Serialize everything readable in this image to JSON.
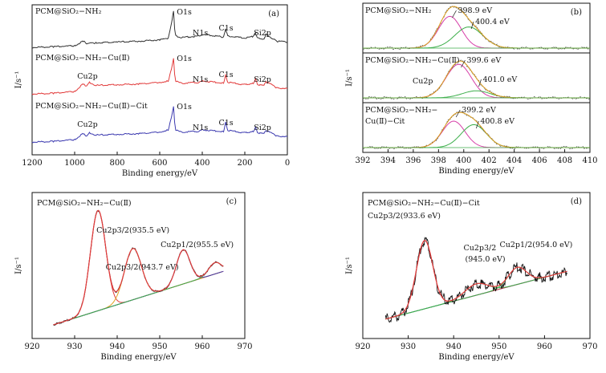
{
  "chart_data": [
    {
      "id": "a",
      "type": "line",
      "panel_label": "(a)",
      "xlabel": "Binding energy/eV",
      "ylabel": "I/s⁻¹",
      "xlim": [
        1200,
        0
      ],
      "xticks": [
        1200,
        1000,
        800,
        600,
        400,
        200,
        0
      ],
      "traces": [
        {
          "name": "PCM@SiO₂−NH₂",
          "color": "#333333",
          "x": [
            1200,
            1100,
            1000,
            960,
            950,
            940,
            900,
            800,
            700,
            600,
            560,
            545,
            535,
            530,
            525,
            500,
            420,
            400,
            300,
            290,
            280,
            200,
            160,
            150,
            140,
            110,
            100,
            50,
            0
          ],
          "y": [
            0.06,
            0.08,
            0.1,
            0.22,
            0.18,
            0.16,
            0.18,
            0.2,
            0.22,
            0.26,
            0.3,
            0.7,
            1.0,
            0.55,
            0.36,
            0.32,
            0.35,
            0.4,
            0.33,
            0.55,
            0.36,
            0.3,
            0.34,
            0.45,
            0.3,
            0.28,
            0.4,
            0.22,
            0.2
          ],
          "annotations": [
            {
              "text": "O1s",
              "x": 535
            },
            {
              "text": "N1s",
              "x": 400
            },
            {
              "text": "C1s",
              "x": 285
            },
            {
              "text": "Si2p",
              "x": 120
            }
          ]
        },
        {
          "name": "PCM@SiO₂−NH₂−Cu(Ⅱ)",
          "color": "#e23c3c",
          "x": [
            1200,
            1100,
            1000,
            960,
            950,
            940,
            930,
            900,
            800,
            700,
            600,
            560,
            545,
            535,
            530,
            525,
            500,
            420,
            400,
            300,
            290,
            280,
            200,
            160,
            150,
            140,
            110,
            100,
            50,
            0
          ],
          "y": [
            0.06,
            0.08,
            0.12,
            0.32,
            0.26,
            0.3,
            0.36,
            0.28,
            0.3,
            0.32,
            0.36,
            0.4,
            0.7,
            1.0,
            0.55,
            0.4,
            0.34,
            0.36,
            0.4,
            0.34,
            0.55,
            0.36,
            0.3,
            0.34,
            0.45,
            0.3,
            0.28,
            0.38,
            0.22,
            0.2
          ],
          "annotations": [
            {
              "text": "O1s",
              "x": 535
            },
            {
              "text": "Cu2p",
              "x": 935
            },
            {
              "text": "N1s",
              "x": 400
            },
            {
              "text": "C1s",
              "x": 285
            },
            {
              "text": "Si2p",
              "x": 120
            }
          ]
        },
        {
          "name": "PCM@SiO₂−NH₂−Cu(Ⅱ)−Cit",
          "color": "#3d3bb0",
          "x": [
            1200,
            1100,
            1000,
            960,
            950,
            940,
            930,
            900,
            800,
            700,
            600,
            560,
            545,
            535,
            530,
            525,
            500,
            420,
            400,
            300,
            290,
            280,
            200,
            160,
            150,
            140,
            110,
            100,
            50,
            0
          ],
          "y": [
            0.06,
            0.08,
            0.12,
            0.28,
            0.22,
            0.24,
            0.3,
            0.24,
            0.26,
            0.28,
            0.32,
            0.38,
            0.7,
            1.0,
            0.55,
            0.38,
            0.32,
            0.34,
            0.38,
            0.33,
            0.58,
            0.36,
            0.3,
            0.34,
            0.44,
            0.3,
            0.28,
            0.36,
            0.22,
            0.2
          ],
          "annotations": [
            {
              "text": "O1s",
              "x": 535
            },
            {
              "text": "Cu2p",
              "x": 935
            },
            {
              "text": "N1s",
              "x": 400
            },
            {
              "text": "C1s",
              "x": 285
            },
            {
              "text": "Si2p",
              "x": 120
            }
          ]
        }
      ]
    },
    {
      "id": "b",
      "type": "line",
      "panel_label": "(b)",
      "xlabel": "Binding energy/eV",
      "ylabel": "I/s⁻¹",
      "xlim": [
        392,
        410
      ],
      "xticks": [
        392,
        394,
        396,
        398,
        400,
        402,
        404,
        406,
        408,
        410
      ],
      "subpanels": [
        {
          "title": "PCM@SiO₂−NH₂",
          "components": [
            {
              "center": 398.9,
              "amp": 0.9,
              "sigma": 0.9,
              "color": "#d63fa8",
              "label": "398.9 eV"
            },
            {
              "center": 400.4,
              "amp": 0.6,
              "sigma": 1.1,
              "color": "#3cae4a",
              "label": "400.4 eV"
            }
          ],
          "data_color": "#555555",
          "sum_color": "#e0a020"
        },
        {
          "title": "PCM@SiO₂−NH₂−Cu(Ⅱ)",
          "extra_label": "Cu2p",
          "components": [
            {
              "center": 399.6,
              "amp": 0.95,
              "sigma": 1.0,
              "color": "#d63fa8",
              "label": "399.6 eV"
            },
            {
              "center": 401.0,
              "amp": 0.2,
              "sigma": 1.1,
              "color": "#3cae4a",
              "label": "401.0 eV"
            }
          ],
          "data_color": "#555555",
          "sum_color": "#e0a020"
        },
        {
          "title": "PCM@SiO₂−NH₂−",
          "title2": "Cu(Ⅱ)−Cit",
          "components": [
            {
              "center": 399.2,
              "amp": 0.75,
              "sigma": 0.9,
              "color": "#d63fa8",
              "label": "399.2 eV"
            },
            {
              "center": 400.8,
              "amp": 0.65,
              "sigma": 1.0,
              "color": "#3cae4a",
              "label": "400.8 eV"
            }
          ],
          "data_color": "#555555",
          "sum_color": "#e0a020"
        }
      ]
    },
    {
      "id": "c",
      "type": "line",
      "panel_label": "(c)",
      "title": "PCM@SiO₂−NH₂−Cu(Ⅱ)",
      "xlabel": "Binding energy/eV",
      "ylabel": "I/s⁻¹",
      "xlim": [
        920,
        970
      ],
      "xticks": [
        920,
        930,
        940,
        950,
        960,
        970
      ],
      "baseline": [
        [
          925,
          0.05
        ],
        [
          965,
          0.52
        ]
      ],
      "components": [
        {
          "center": 935.5,
          "amp": 0.88,
          "sigma": 1.8,
          "color": "#e23c3c",
          "label": "Cu2p3/2(935.5 eV)"
        },
        {
          "center": 943.7,
          "amp": 0.45,
          "sigma": 2.0,
          "color": "#e0a020",
          "label": "Cu2p3/2(943.7 eV)"
        },
        {
          "center": 955.5,
          "amp": 0.3,
          "sigma": 1.6,
          "color": "#3d3bb0",
          "label": "Cu2p1/2(955.5 eV)"
        },
        {
          "center": 963.0,
          "amp": 0.1,
          "sigma": 1.5,
          "color": "#3cae4a"
        }
      ],
      "data_color": "#333333",
      "baseline_color": "#6a3fb8"
    },
    {
      "id": "d",
      "type": "line",
      "panel_label": "(d)",
      "title": "PCM@SiO₂−NH₂−Cu(Ⅱ)−Cit",
      "xlabel": "Binding energy/eV",
      "ylabel": "I/s⁻¹",
      "xlim": [
        920,
        970
      ],
      "xticks": [
        920,
        930,
        940,
        950,
        960,
        970
      ],
      "baseline": [
        [
          925,
          0.1
        ],
        [
          965,
          0.52
        ]
      ],
      "components": [
        {
          "center": 933.6,
          "amp": 0.6,
          "sigma": 1.8,
          "color": "#e23c3c",
          "label": "Cu2p3/2(933.6 eV)"
        },
        {
          "center": 945.0,
          "amp": 0.1,
          "sigma": 2.5,
          "color": "#3cae4a",
          "label": "Cu2p3/2",
          "label2": "(945.0 eV)"
        },
        {
          "center": 954.0,
          "amp": 0.15,
          "sigma": 2.0,
          "color": "#3cae4a",
          "label": "Cu2p1/2(954.0 eV)"
        }
      ],
      "data_color": "#111111",
      "baseline_color": "#3d3bb0"
    }
  ]
}
